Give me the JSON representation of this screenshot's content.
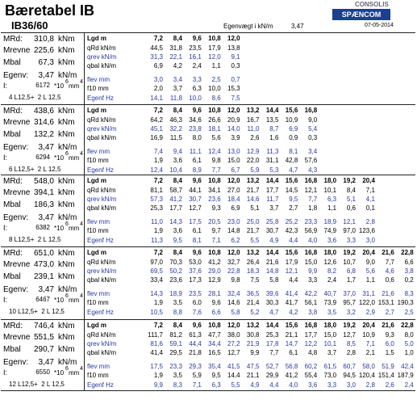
{
  "header": {
    "title": "Bæretabel IB",
    "subtitle": "IB36/60",
    "weight_label": "Egenvægt i kN/m",
    "weight_value": "3,47",
    "logo_top": "CONSOLIS",
    "logo": "SPÆNCOM",
    "date": "07-05-2014"
  },
  "sections": [
    {
      "info": [
        {
          "label": "MRd:",
          "value": "310,8",
          "unit": "kNm"
        },
        {
          "label": "Mrevne",
          "value": "225,6",
          "unit": "kNm"
        },
        {
          "label": "Mbal",
          "value": "67,3",
          "unit": "kNm"
        },
        {
          "label": "Egenv:",
          "value": "3,47",
          "unit": "kN/m"
        }
      ],
      "inertia": {
        "label": "I:",
        "value": "6172",
        "unit": "*10",
        "exp": "6",
        "unit2": "mm",
        "exp2": "4"
      },
      "reinforcement": "4 L12,5+  2 L 12,5",
      "rows": [
        {
          "label": "Lgd m",
          "values": [
            "7,2",
            "8,4",
            "9,6",
            "10,8",
            "12,0"
          ]
        },
        {
          "label": "qRd kN/m",
          "values": [
            "44,5",
            "31,8",
            "23,5",
            "17,9",
            "13,8"
          ]
        },
        {
          "label": "qrev kN/m",
          "values": [
            "31,3",
            "22,1",
            "16,1",
            "12,0",
            "9,1"
          ]
        },
        {
          "label": "qbal kN/m",
          "values": [
            "6,9",
            "4,2",
            "2,4",
            "1,1",
            "0,3"
          ]
        },
        {
          "label": "flev mm",
          "values": [
            "3,0",
            "3,4",
            "3,3",
            "2,5",
            "0,7"
          ]
        },
        {
          "label": "f10 mm",
          "values": [
            "2,0",
            "3,7",
            "6,3",
            "10,0",
            "15,3"
          ]
        },
        {
          "label": "Egenf Hz",
          "values": [
            "14,1",
            "11,8",
            "10,0",
            "8,6",
            "7,5"
          ]
        }
      ]
    },
    {
      "info": [
        {
          "label": "MRd:",
          "value": "438,6",
          "unit": "kNm"
        },
        {
          "label": "Mrevne",
          "value": "314,6",
          "unit": "kNm"
        },
        {
          "label": "Mbal",
          "value": "132,2",
          "unit": "kNm"
        },
        {
          "label": "Egenv:",
          "value": "3,47",
          "unit": "kN/m"
        }
      ],
      "inertia": {
        "label": "I:",
        "value": "6294",
        "unit": "*10",
        "exp": "6",
        "unit2": "mm",
        "exp2": "4"
      },
      "reinforcement": "6 L12,5+  2 L 12,5",
      "rows": [
        {
          "label": "Lgd m",
          "values": [
            "7,2",
            "8,4",
            "9,6",
            "10,8",
            "12,0",
            "13,2",
            "14,4",
            "15,6",
            "16,8"
          ]
        },
        {
          "label": "qRd kN/m",
          "values": [
            "64,2",
            "46,3",
            "34,6",
            "26,6",
            "20,9",
            "16,7",
            "13,5",
            "10,9",
            "9,0"
          ]
        },
        {
          "label": "qrev kN/m",
          "values": [
            "45,1",
            "32,2",
            "23,8",
            "18,1",
            "14,0",
            "11,0",
            "8,7",
            "6,9",
            "5,4"
          ]
        },
        {
          "label": "qbal kN/m",
          "values": [
            "16,9",
            "11,5",
            "8,0",
            "5,6",
            "3,9",
            "2,6",
            "1,6",
            "0,9",
            "0,3"
          ]
        },
        {
          "label": "flev mm",
          "values": [
            "7,4",
            "9,4",
            "11,1",
            "12,4",
            "13,0",
            "12,9",
            "11,3",
            "8,1",
            "3,4"
          ]
        },
        {
          "label": "f10 mm",
          "values": [
            "1,9",
            "3,6",
            "6,1",
            "9,8",
            "15,0",
            "22,0",
            "31,1",
            "42,8",
            "57,6"
          ]
        },
        {
          "label": "Egenf Hz",
          "values": [
            "12,4",
            "10,4",
            "8,9",
            "7,7",
            "6,7",
            "5,9",
            "5,3",
            "4,7",
            "4,3"
          ]
        }
      ]
    },
    {
      "info": [
        {
          "label": "MRd:",
          "value": "548,0",
          "unit": "kNm"
        },
        {
          "label": "Mrevne",
          "value": "394,1",
          "unit": "kNm"
        },
        {
          "label": "Mbal",
          "value": "186,3",
          "unit": "kNm"
        },
        {
          "label": "Egenv:",
          "value": "3,47",
          "unit": "kN/m"
        }
      ],
      "inertia": {
        "label": "I:",
        "value": "6382",
        "unit": "*10",
        "exp": "6",
        "unit2": "mm",
        "exp2": "4"
      },
      "reinforcement": "8 L12,5+  2 L 12,5",
      "rows": [
        {
          "label": "Lgd m",
          "values": [
            "7,2",
            "8,4",
            "9,6",
            "10,8",
            "12,0",
            "13,2",
            "14,4",
            "15,6",
            "16,8",
            "18,0",
            "19,2",
            "20,4"
          ]
        },
        {
          "label": "qRd kN/m",
          "values": [
            "81,1",
            "58,7",
            "44,1",
            "34,1",
            "27,0",
            "21,7",
            "17,7",
            "14,5",
            "12,1",
            "10,1",
            "8,4",
            "7,1"
          ]
        },
        {
          "label": "qrev kN/m",
          "values": [
            "57,3",
            "41,2",
            "30,7",
            "23,6",
            "18,4",
            "14,6",
            "11,7",
            "9,5",
            "7,7",
            "6,3",
            "5,1",
            "4,1"
          ]
        },
        {
          "label": "qbal kN/m",
          "values": [
            "25,3",
            "17,7",
            "12,7",
            "9,3",
            "6,9",
            "5,1",
            "3,7",
            "2,7",
            "1,8",
            "1,1",
            "0,6",
            "0,1"
          ]
        },
        {
          "label": "flev mm",
          "values": [
            "11,0",
            "14,3",
            "17,5",
            "20,5",
            "23,0",
            "25,0",
            "25,8",
            "25,2",
            "23,3",
            "18,9",
            "12,1",
            "2,8"
          ]
        },
        {
          "label": "f10 mm",
          "values": [
            "1,9",
            "3,6",
            "6,1",
            "9,7",
            "14,8",
            "21,7",
            "30,7",
            "42,3",
            "56,9",
            "74,9",
            "97,0",
            "123,6"
          ]
        },
        {
          "label": "Egenf Hz",
          "values": [
            "11,3",
            "9,5",
            "8,1",
            "7,1",
            "6,2",
            "5,5",
            "4,9",
            "4,4",
            "4,0",
            "3,6",
            "3,3",
            "3,0"
          ]
        }
      ]
    },
    {
      "info": [
        {
          "label": "MRd:",
          "value": "651,0",
          "unit": "kNm"
        },
        {
          "label": "Mrevne",
          "value": "473,0",
          "unit": "kNm"
        },
        {
          "label": "Mbal",
          "value": "239,1",
          "unit": "kNm"
        },
        {
          "label": "Egenv:",
          "value": "3,47",
          "unit": "kN/m"
        }
      ],
      "inertia": {
        "label": "I:",
        "value": "6467",
        "unit": "*10",
        "exp": "6",
        "unit2": "mm",
        "exp2": "4"
      },
      "reinforcement": "10 L12,5+  2 L 12,5",
      "rows": [
        {
          "label": "Lgd m",
          "values": [
            "7,2",
            "8,4",
            "9,6",
            "10,8",
            "12,0",
            "13,2",
            "14,4",
            "15,6",
            "16,8",
            "18,0",
            "19,2",
            "20,4",
            "21,6",
            "22,8"
          ]
        },
        {
          "label": "qRd kN/m",
          "values": [
            "97,0",
            "70,3",
            "53,0",
            "41,2",
            "32,7",
            "26,4",
            "21,6",
            "17,9",
            "15,0",
            "12,6",
            "10,7",
            "9,0",
            "7,7",
            "6,6"
          ]
        },
        {
          "label": "qrev kN/m",
          "values": [
            "69,5",
            "50,2",
            "37,6",
            "29,0",
            "22,8",
            "18,3",
            "14,8",
            "12,1",
            "9,9",
            "8,2",
            "6,8",
            "5,6",
            "4,6",
            "3,8"
          ]
        },
        {
          "label": "qbal kN/m",
          "values": [
            "33,4",
            "23,6",
            "17,3",
            "12,9",
            "9,8",
            "7,5",
            "5,8",
            "4,4",
            "3,3",
            "2,4",
            "1,7",
            "1,1",
            "0,6",
            "0,2"
          ]
        },
        {
          "label": "flev mm",
          "values": [
            "14,3",
            "18,9",
            "23,5",
            "28,1",
            "32,4",
            "36,5",
            "39,6",
            "41,4",
            "42,2",
            "40,7",
            "37,0",
            "31,1",
            "21,6",
            "8,3"
          ]
        },
        {
          "label": "f10 mm",
          "values": [
            "1,9",
            "3,5",
            "6,0",
            "9,6",
            "14,6",
            "21,4",
            "30,3",
            "41,7",
            "56,1",
            "73,9",
            "95,7",
            "122,0",
            "153,1",
            "190,3"
          ]
        },
        {
          "label": "Egenf Hz",
          "values": [
            "10,5",
            "8,8",
            "7,6",
            "6,6",
            "5,8",
            "5,2",
            "4,7",
            "4,2",
            "3,8",
            "3,5",
            "3,2",
            "2,9",
            "2,7",
            "2,5"
          ]
        }
      ]
    },
    {
      "info": [
        {
          "label": "MRd:",
          "value": "746,4",
          "unit": "kNm"
        },
        {
          "label": "Mrevne",
          "value": "551,5",
          "unit": "kNm"
        },
        {
          "label": "Mbal",
          "value": "290,7",
          "unit": "kNm"
        },
        {
          "label": "Egenv:",
          "value": "3,47",
          "unit": "kN/m"
        }
      ],
      "inertia": {
        "label": "I:",
        "value": "6550",
        "unit": "*10",
        "exp": "6",
        "unit2": "mm",
        "exp2": "4"
      },
      "reinforcement": "12 L12,5+  2 L 12,5",
      "rows": [
        {
          "label": "Lgd m",
          "values": [
            "7,2",
            "8,4",
            "9,6",
            "10,8",
            "12,0",
            "13,2",
            "14,4",
            "15,6",
            "16,8",
            "18,0",
            "19,2",
            "20,4",
            "21,6",
            "22,8"
          ]
        },
        {
          "label": "qRd kN/m",
          "values": [
            "111,7",
            "81,2",
            "61,3",
            "47,7",
            "38,0",
            "30,8",
            "25,3",
            "21,1",
            "17,7",
            "15,0",
            "12,7",
            "10,9",
            "9,3",
            "8,0"
          ]
        },
        {
          "label": "qrev kN/m",
          "values": [
            "81,6",
            "59,1",
            "44,4",
            "34,4",
            "27,2",
            "21,9",
            "17,8",
            "14,7",
            "12,2",
            "10,1",
            "8,5",
            "7,1",
            "6,0",
            "5,0"
          ]
        },
        {
          "label": "qbal kN/m",
          "values": [
            "41,4",
            "29,5",
            "21,8",
            "16,5",
            "12,7",
            "9,9",
            "7,7",
            "6,1",
            "4,8",
            "3,7",
            "2,8",
            "2,1",
            "1,5",
            "1,0"
          ]
        },
        {
          "label": "flev mm",
          "values": [
            "17,5",
            "23,3",
            "29,3",
            "35,4",
            "41,5",
            "47,5",
            "52,7",
            "56,8",
            "60,2",
            "61,5",
            "60,7",
            "58,0",
            "51,9",
            "42,4"
          ]
        },
        {
          "label": "f10 mm",
          "values": [
            "1,9",
            "3,5",
            "5,9",
            "9,5",
            "14,4",
            "21,1",
            "29,9",
            "41,2",
            "55,4",
            "73,0",
            "94,5",
            "120,4",
            "151,4",
            "187,9"
          ]
        },
        {
          "label": "Egenf Hz",
          "values": [
            "9,9",
            "8,3",
            "7,1",
            "6,3",
            "5,5",
            "4,9",
            "4,4",
            "4,0",
            "3,6",
            "3,3",
            "3,0",
            "2,8",
            "2,6",
            "2,4"
          ]
        }
      ]
    }
  ]
}
